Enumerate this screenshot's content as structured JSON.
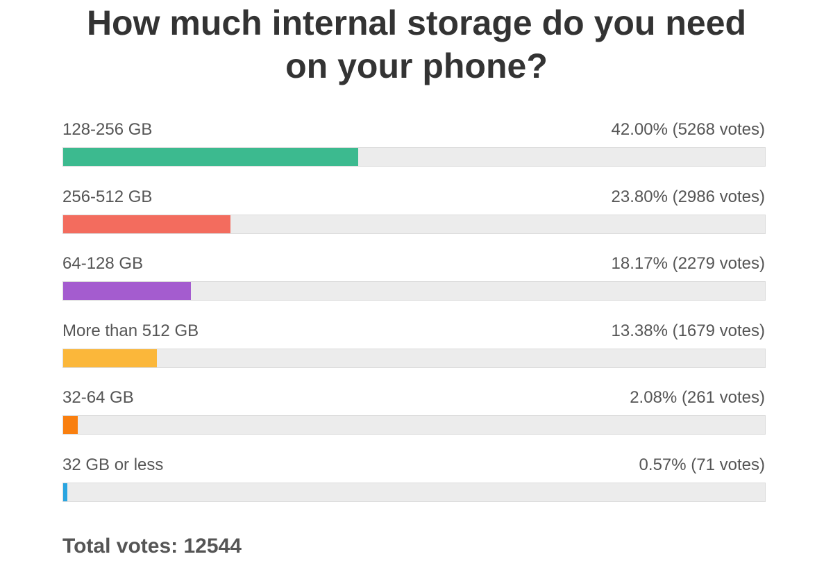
{
  "chart_data": {
    "type": "bar",
    "orientation": "horizontal",
    "title": "How much internal storage do you need on your phone?",
    "categories": [
      "128-256 GB",
      "256-512 GB",
      "64-128 GB",
      "More than 512 GB",
      "32-64 GB",
      "32 GB or less"
    ],
    "values": [
      42.0,
      23.8,
      18.17,
      13.38,
      2.08,
      0.57
    ],
    "value_labels": [
      "42.00%",
      "23.80%",
      "18.17%",
      "13.38%",
      "2.08%",
      "0.57%"
    ],
    "vote_labels": [
      "(5268 votes)",
      "(2986 votes)",
      "(2279 votes)",
      "(1679 votes)",
      "(261 votes)",
      "(71 votes)"
    ],
    "colors": [
      "#3cba8f",
      "#f36c5e",
      "#a45ccf",
      "#fbb73a",
      "#f97f0f",
      "#2aa5e0"
    ],
    "xlim": [
      0,
      100
    ],
    "footer": "Total votes: 12544"
  }
}
